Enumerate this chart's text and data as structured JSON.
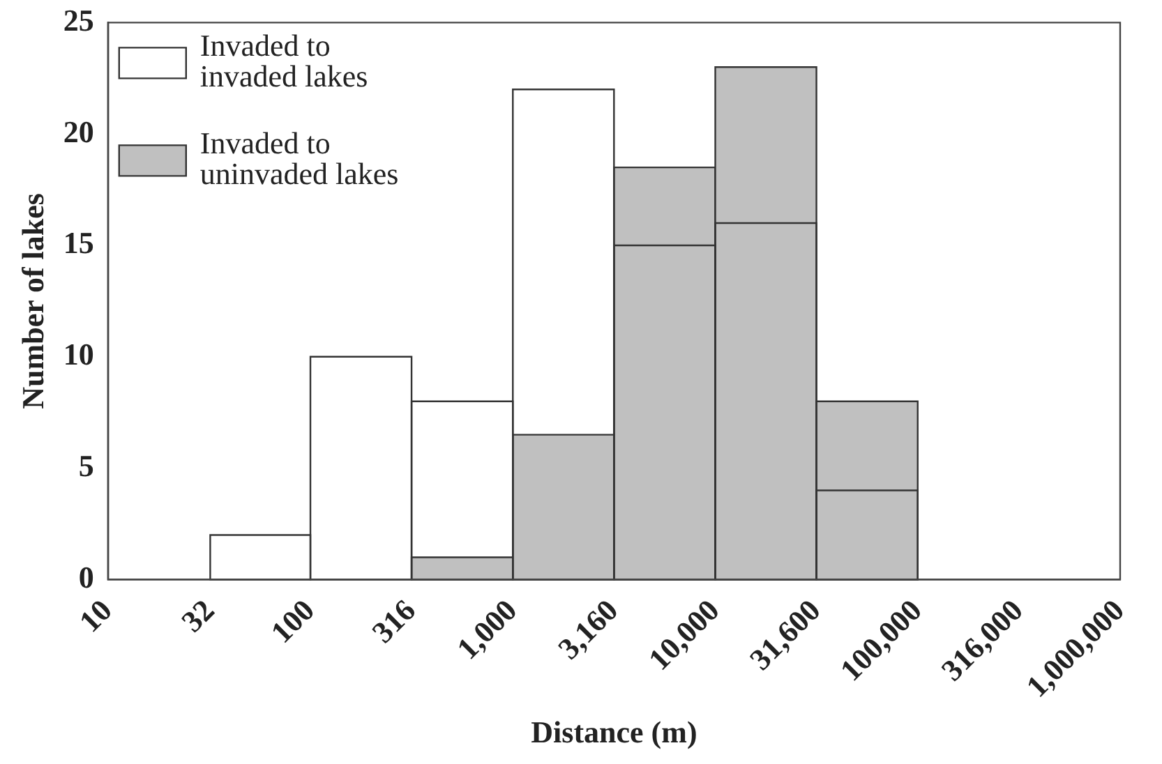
{
  "chart_data": {
    "type": "histogram",
    "xlabel": "Distance (m)",
    "ylabel": "Number of lakes",
    "bins": [
      32,
      100,
      316,
      1000,
      3160,
      10000,
      31600,
      100000
    ],
    "series": [
      {
        "name": "Invaded to invaded lakes",
        "color": "#333333",
        "values": [
          2,
          10,
          8,
          22,
          15,
          16,
          4
        ]
      },
      {
        "name": "Invaded to uninvaded lakes",
        "color": "#c0c0c0",
        "values": [
          null,
          null,
          1,
          6.5,
          18.5,
          23,
          8
        ]
      }
    ],
    "log": "x",
    "xlim": [
      10,
      1000000
    ],
    "xticks": [
      10,
      32,
      100,
      316,
      {
        "value": 1000,
        "label": "1,000"
      },
      {
        "value": 3160,
        "label": "3,160"
      },
      {
        "value": 10000,
        "label": "10,000"
      },
      {
        "value": 31600,
        "label": "31,600"
      },
      {
        "value": 100000,
        "label": "100,000"
      },
      {
        "value": 316000,
        "label": "316,000"
      },
      {
        "value": 1000000,
        "label": "1,000,000"
      }
    ],
    "ylim": [
      0,
      25
    ],
    "yticks": [
      0,
      5,
      10,
      15,
      20,
      25
    ],
    "grid": false,
    "legend": "top left"
  }
}
